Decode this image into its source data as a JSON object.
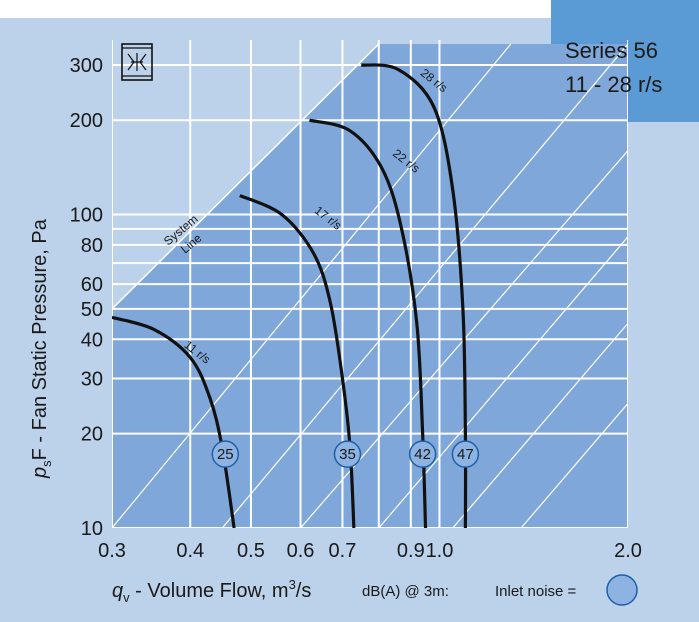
{
  "chart_data": {
    "type": "line",
    "x_scale": "log",
    "y_scale": "log",
    "xlim": [
      0.3,
      2.0
    ],
    "ylim": [
      10,
      300
    ],
    "x_ticks": [
      {
        "value": 0.3,
        "label": "0.3"
      },
      {
        "value": 0.4,
        "label": "0.4"
      },
      {
        "value": 0.5,
        "label": "0.5"
      },
      {
        "value": 0.6,
        "label": "0.6"
      },
      {
        "value": 0.7,
        "label": "0.7"
      },
      {
        "value": 0.9,
        "label": "0.9"
      },
      {
        "value": 1.0,
        "label": "1.0"
      },
      {
        "value": 2.0,
        "label": "2.0"
      }
    ],
    "x_gridlines": [
      0.3,
      0.4,
      0.5,
      0.6,
      0.7,
      0.8,
      0.9,
      1.0,
      2.0
    ],
    "y_ticks": [
      {
        "value": 10,
        "label": "10"
      },
      {
        "value": 20,
        "label": "20"
      },
      {
        "value": 30,
        "label": "30"
      },
      {
        "value": 40,
        "label": "40"
      },
      {
        "value": 50,
        "label": "50"
      },
      {
        "value": 60,
        "label": "60"
      },
      {
        "value": 80,
        "label": "80"
      },
      {
        "value": 100,
        "label": "100"
      },
      {
        "value": 200,
        "label": "200"
      },
      {
        "value": 300,
        "label": "300"
      }
    ],
    "y_gridlines": [
      10,
      20,
      30,
      40,
      50,
      60,
      70,
      80,
      90,
      100,
      200,
      300
    ],
    "xlabel": {
      "symbol": "q",
      "subscript": "v",
      "text": " - Volume Flow, m",
      "superscript": "3",
      "suffix": "/s"
    },
    "ylabel": {
      "symbol": "p",
      "subscript": "s",
      "text": "F - Fan Static Pressure, Pa"
    },
    "series_box": {
      "line1": "Series 56",
      "line2": "11 - 28 r/s"
    },
    "system_line": {
      "label_line1": "System",
      "label_line2": "Line",
      "points": [
        [
          0.3,
          50
        ],
        [
          0.8,
          350
        ]
      ]
    },
    "parallel_lines": [
      [
        [
          0.3,
          10
        ],
        [
          1.3,
          350
        ]
      ],
      [
        [
          0.45,
          10
        ],
        [
          2.0,
          350
        ]
      ],
      [
        [
          0.6,
          10
        ],
        [
          2.0,
          160
        ]
      ],
      [
        [
          0.8,
          10
        ],
        [
          2.0,
          85
        ]
      ],
      [
        [
          1.05,
          10
        ],
        [
          2.0,
          45
        ]
      ],
      [
        [
          1.35,
          10
        ],
        [
          2.0,
          25
        ]
      ]
    ],
    "series": [
      {
        "name": "11 r/s",
        "points": [
          [
            0.3,
            47
          ],
          [
            0.35,
            43
          ],
          [
            0.4,
            35
          ],
          [
            0.43,
            26
          ],
          [
            0.45,
            18
          ],
          [
            0.47,
            10
          ]
        ],
        "label_at": [
          0.39,
          38
        ]
      },
      {
        "name": "17 r/s",
        "points": [
          [
            0.48,
            115
          ],
          [
            0.56,
            100
          ],
          [
            0.63,
            75
          ],
          [
            0.67,
            52
          ],
          [
            0.7,
            30
          ],
          [
            0.72,
            18
          ],
          [
            0.73,
            10
          ]
        ],
        "label_at": [
          0.63,
          102
        ]
      },
      {
        "name": "22 r/s",
        "points": [
          [
            0.62,
            200
          ],
          [
            0.72,
            185
          ],
          [
            0.81,
            140
          ],
          [
            0.87,
            90
          ],
          [
            0.92,
            45
          ],
          [
            0.94,
            20
          ],
          [
            0.95,
            10
          ]
        ],
        "label_at": [
          0.84,
          155
        ]
      },
      {
        "name": "28 r/s",
        "points": [
          [
            0.75,
            300
          ],
          [
            0.86,
            290
          ],
          [
            0.98,
            220
          ],
          [
            1.05,
            120
          ],
          [
            1.09,
            50
          ],
          [
            1.1,
            20
          ],
          [
            1.1,
            10
          ]
        ],
        "label_at": [
          0.93,
          280
        ]
      }
    ],
    "noise_markers": [
      {
        "value": "25",
        "x": 0.455,
        "y": 17.2
      },
      {
        "value": "35",
        "x": 0.713,
        "y": 17.2
      },
      {
        "value": "42",
        "x": 0.94,
        "y": 17.2
      },
      {
        "value": "47",
        "x": 1.1,
        "y": 17.2
      }
    ],
    "legend": {
      "noise_label": "dB(A) @ 3m:",
      "inlet_label": "Inlet noise ="
    },
    "colors": {
      "panel": "#bcd1ea",
      "plot_area": "#7fa7d9",
      "grid": "#ffffff",
      "curve": "#111111",
      "marker_fill": "#8db3e2",
      "marker_stroke": "#1f5fa6",
      "series_box": "#5b9bd5"
    }
  }
}
